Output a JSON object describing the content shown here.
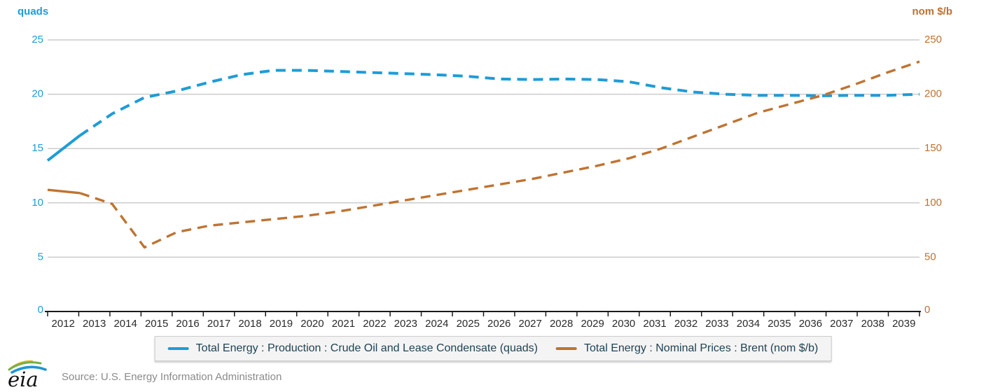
{
  "chart": {
    "left_axis": {
      "title": "quads",
      "ticks": [
        0,
        5,
        10,
        15,
        20,
        25
      ],
      "min": 0,
      "max": 25,
      "color": "#1e9cd7"
    },
    "right_axis": {
      "title": "nom $/b",
      "ticks": [
        0,
        50,
        100,
        150,
        200,
        250
      ],
      "min": 0,
      "max": 250,
      "color": "#bd7130"
    }
  },
  "chart_data": {
    "type": "line",
    "title": "",
    "x": [
      2012,
      2013,
      2014,
      2015,
      2016,
      2017,
      2018,
      2019,
      2020,
      2021,
      2022,
      2023,
      2024,
      2025,
      2026,
      2027,
      2028,
      2029,
      2030,
      2031,
      2032,
      2033,
      2034,
      2035,
      2036,
      2037,
      2038,
      2039
    ],
    "xlabel": "",
    "grid": true,
    "legend_position": "bottom",
    "history_solid_through": 2013,
    "series": [
      {
        "name": "Total Energy : Production : Crude Oil and Lease Condensate (quads)",
        "axis": "left",
        "ylabel": "quads",
        "ylim": [
          0,
          25
        ],
        "color": "#1e9cd7",
        "line_style": "solid-history-then-dashed",
        "values": [
          13.9,
          16.2,
          18.2,
          19.7,
          20.3,
          21.1,
          21.8,
          22.2,
          22.2,
          22.1,
          22.0,
          21.9,
          21.8,
          21.65,
          21.4,
          21.35,
          21.4,
          21.35,
          21.15,
          20.6,
          20.2,
          20.0,
          19.9,
          19.9,
          19.85,
          19.9,
          19.9,
          20.0
        ]
      },
      {
        "name": "Total Energy : Nominal Prices : Brent (nom $/b)",
        "axis": "right",
        "ylabel": "nom $/b",
        "ylim": [
          0,
          250
        ],
        "color": "#bf7331",
        "line_style": "solid-history-then-dashed",
        "values": [
          112,
          109,
          99,
          59,
          73,
          79,
          82,
          85,
          88,
          92,
          97,
          102,
          107,
          112,
          117,
          122,
          128,
          134,
          141,
          150,
          161,
          172,
          183,
          191,
          199,
          209,
          220,
          230
        ]
      }
    ]
  },
  "legend": {
    "items": [
      {
        "label": "Total Energy : Production : Crude Oil and Lease Condensate (quads)",
        "color": "#1e9cd7"
      },
      {
        "label": "Total Energy : Nominal Prices : Brent (nom $/b)",
        "color": "#bf7331"
      }
    ]
  },
  "footer": {
    "logo_text": "eia",
    "source": "Source: U.S. Energy Information Administration"
  },
  "colors": {
    "grid": "#cccccc",
    "axis_line": "#1a1a1a",
    "year_labels": "#2b2b2b",
    "legend_text": "#1f4254",
    "legend_background": "#f4f4f4",
    "legend_border": "#cccccc",
    "source_text": "#8a8a8a",
    "logo_green": "#76b043",
    "logo_yellow": "#e0b32a",
    "logo_blue": "#2096d3"
  }
}
